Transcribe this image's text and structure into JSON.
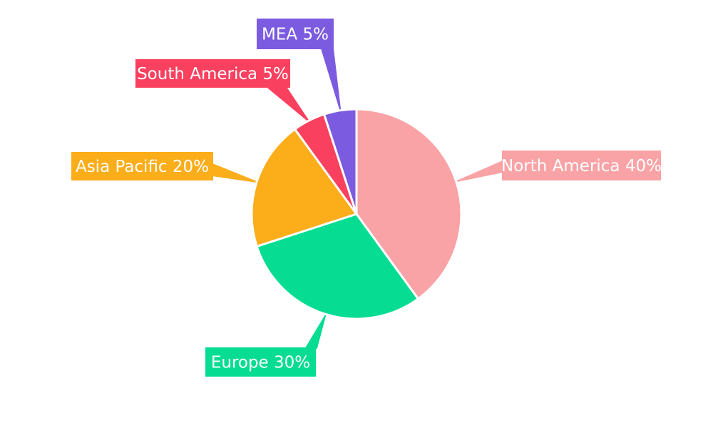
{
  "page": {
    "background_color": "#ffffff",
    "label_text_color": "#ffffff"
  },
  "chart_data": {
    "type": "pie",
    "title": "",
    "direction": "clockwise",
    "start_angle_deg": 0,
    "slice_separator_color": "#ffffff",
    "legend_position": "none",
    "label_style": "colored-box-with-tapered-leader-line",
    "categories": [
      "North America",
      "Europe",
      "Asia Pacific",
      "South America",
      "MEA"
    ],
    "values": [
      40,
      30,
      20,
      5,
      5
    ],
    "unit": "%",
    "slices": [
      {
        "label": "North America",
        "value": 40,
        "label_text": "North America 40%",
        "color": "#F9A3A6"
      },
      {
        "label": "Europe",
        "value": 30,
        "label_text": "Europe 30%",
        "color": "#06DC92"
      },
      {
        "label": "Asia Pacific",
        "value": 20,
        "label_text": "Asia Pacific 20%",
        "color": "#FBAD1A"
      },
      {
        "label": "South America",
        "value": 5,
        "label_text": "South America 5%",
        "color": "#F9415F"
      },
      {
        "label": "MEA",
        "value": 5,
        "label_text": "MEA 5%",
        "color": "#7B5BE0"
      }
    ]
  }
}
